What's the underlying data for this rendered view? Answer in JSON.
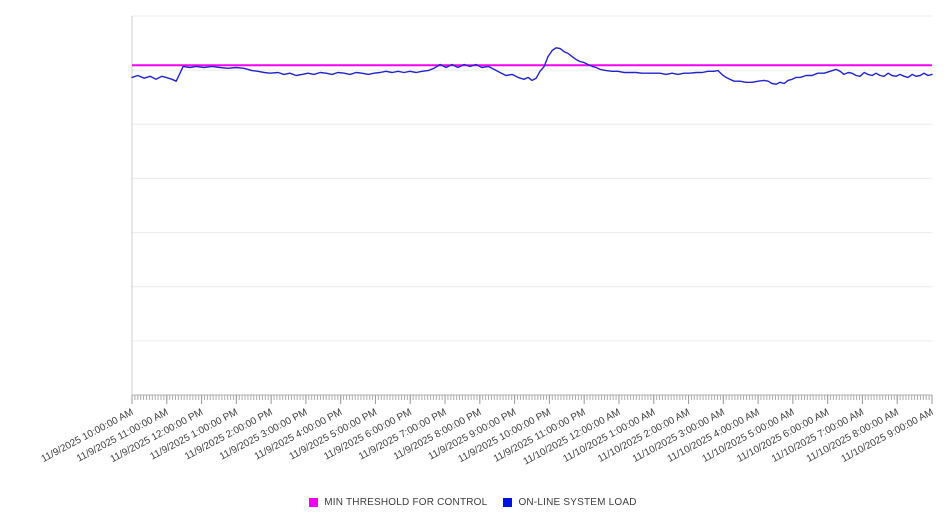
{
  "legend": {
    "items": [
      {
        "label": "MIN THRESHOLD FOR CONTROL",
        "color": "#f400f4"
      },
      {
        "label": "ON-LINE SYSTEM LOAD",
        "color": "#0012e1"
      }
    ]
  },
  "chart_data": {
    "type": "line",
    "title": "",
    "xlabel": "",
    "ylabel": "",
    "ylim": [
      0,
      100
    ],
    "grid": true,
    "grid_divisions": 7,
    "legend_position": "bottom-center",
    "x_axis": {
      "minor_ticks_per_hour": 12,
      "labels": [
        "11/9/2025 10:00:00 AM",
        "11/9/2025 11:00:00 AM",
        "11/9/2025 12:00:00 PM",
        "11/9/2025 1:00:00 PM",
        "11/9/2025 2:00:00 PM",
        "11/9/2025 3:00:00 PM",
        "11/9/2025 4:00:00 PM",
        "11/9/2025 5:00:00 PM",
        "11/9/2025 6:00:00 PM",
        "11/9/2025 7:00:00 PM",
        "11/9/2025 8:00:00 PM",
        "11/9/2025 9:00:00 PM",
        "11/9/2025 10:00:00 PM",
        "11/9/2025 11:00:00 PM",
        "11/10/2025 12:00:00 AM",
        "11/10/2025 1:00:00 AM",
        "11/10/2025 2:00:00 AM",
        "11/10/2025 3:00:00 AM",
        "11/10/2025 4:00:00 AM",
        "11/10/2025 5:00:00 AM",
        "11/10/2025 6:00:00 AM",
        "11/10/2025 7:00:00 AM",
        "11/10/2025 8:00:00 AM",
        "11/10/2025 9:00:00 AM"
      ]
    },
    "series": [
      {
        "name": "MIN THRESHOLD FOR CONTROL",
        "color": "#f400f4",
        "style": "horizontal-threshold-line",
        "value": 87
      },
      {
        "name": "ON-LINE SYSTEM LOAD",
        "color": "#2323cb",
        "style": "line",
        "x_unit": "hours since 11/9/2025 10:00:00 AM",
        "y_unit": "relative load (y axis unlabeled, 0-100 scale)",
        "points": [
          [
            0.0,
            83.8
          ],
          [
            0.17,
            84.3
          ],
          [
            0.35,
            83.6
          ],
          [
            0.52,
            84.1
          ],
          [
            0.69,
            83.3
          ],
          [
            0.86,
            84.1
          ],
          [
            0.98,
            83.8
          ],
          [
            1.15,
            83.3
          ],
          [
            1.27,
            82.8
          ],
          [
            1.38,
            84.9
          ],
          [
            1.47,
            86.7
          ],
          [
            1.67,
            86.4
          ],
          [
            1.84,
            86.7
          ],
          [
            2.07,
            86.4
          ],
          [
            2.3,
            86.7
          ],
          [
            2.53,
            86.4
          ],
          [
            2.76,
            86.2
          ],
          [
            2.99,
            86.4
          ],
          [
            3.22,
            86.2
          ],
          [
            3.45,
            85.6
          ],
          [
            3.62,
            85.4
          ],
          [
            3.8,
            85.1
          ],
          [
            3.97,
            84.9
          ],
          [
            4.2,
            85.1
          ],
          [
            4.37,
            84.6
          ],
          [
            4.54,
            84.9
          ],
          [
            4.72,
            84.3
          ],
          [
            4.89,
            84.6
          ],
          [
            5.06,
            84.9
          ],
          [
            5.23,
            84.6
          ],
          [
            5.41,
            85.1
          ],
          [
            5.58,
            84.9
          ],
          [
            5.75,
            84.6
          ],
          [
            5.92,
            85.1
          ],
          [
            6.1,
            84.9
          ],
          [
            6.27,
            84.6
          ],
          [
            6.44,
            85.1
          ],
          [
            6.61,
            84.9
          ],
          [
            6.79,
            84.6
          ],
          [
            6.96,
            84.9
          ],
          [
            7.13,
            85.1
          ],
          [
            7.3,
            85.4
          ],
          [
            7.48,
            85.1
          ],
          [
            7.65,
            85.4
          ],
          [
            7.82,
            85.1
          ],
          [
            7.99,
            85.4
          ],
          [
            8.17,
            85.1
          ],
          [
            8.34,
            85.4
          ],
          [
            8.51,
            85.6
          ],
          [
            8.68,
            86.2
          ],
          [
            8.86,
            87.2
          ],
          [
            9.03,
            86.4
          ],
          [
            9.2,
            87.2
          ],
          [
            9.37,
            86.4
          ],
          [
            9.55,
            87.2
          ],
          [
            9.72,
            86.7
          ],
          [
            9.89,
            87.2
          ],
          [
            10.06,
            86.4
          ],
          [
            10.24,
            86.7
          ],
          [
            10.41,
            85.9
          ],
          [
            10.58,
            85.1
          ],
          [
            10.75,
            84.3
          ],
          [
            10.93,
            84.6
          ],
          [
            11.1,
            83.8
          ],
          [
            11.27,
            83.3
          ],
          [
            11.39,
            83.8
          ],
          [
            11.5,
            83.0
          ],
          [
            11.62,
            83.6
          ],
          [
            11.73,
            85.4
          ],
          [
            11.85,
            86.7
          ],
          [
            11.96,
            89.3
          ],
          [
            12.08,
            90.9
          ],
          [
            12.19,
            91.6
          ],
          [
            12.31,
            91.4
          ],
          [
            12.42,
            90.6
          ],
          [
            12.54,
            90.1
          ],
          [
            12.65,
            89.3
          ],
          [
            12.77,
            88.5
          ],
          [
            12.88,
            88.0
          ],
          [
            13.0,
            87.7
          ],
          [
            13.11,
            87.2
          ],
          [
            13.23,
            86.7
          ],
          [
            13.34,
            86.4
          ],
          [
            13.46,
            85.9
          ],
          [
            13.63,
            85.6
          ],
          [
            13.8,
            85.4
          ],
          [
            13.97,
            85.4
          ],
          [
            14.15,
            85.1
          ],
          [
            14.32,
            85.1
          ],
          [
            14.49,
            85.1
          ],
          [
            14.66,
            84.9
          ],
          [
            14.84,
            84.9
          ],
          [
            15.01,
            84.9
          ],
          [
            15.18,
            84.9
          ],
          [
            15.35,
            84.6
          ],
          [
            15.53,
            84.9
          ],
          [
            15.7,
            84.6
          ],
          [
            15.87,
            84.9
          ],
          [
            16.04,
            84.9
          ],
          [
            16.22,
            85.1
          ],
          [
            16.39,
            85.1
          ],
          [
            16.56,
            85.4
          ],
          [
            16.73,
            85.4
          ],
          [
            16.85,
            85.6
          ],
          [
            16.96,
            84.6
          ],
          [
            17.08,
            83.8
          ],
          [
            17.19,
            83.3
          ],
          [
            17.31,
            82.8
          ],
          [
            17.48,
            82.8
          ],
          [
            17.65,
            82.5
          ],
          [
            17.83,
            82.5
          ],
          [
            18.0,
            82.8
          ],
          [
            18.17,
            83.0
          ],
          [
            18.29,
            82.8
          ],
          [
            18.4,
            82.2
          ],
          [
            18.52,
            82.0
          ],
          [
            18.63,
            82.5
          ],
          [
            18.75,
            82.2
          ],
          [
            18.86,
            83.0
          ],
          [
            18.98,
            83.3
          ],
          [
            19.09,
            83.8
          ],
          [
            19.21,
            83.8
          ],
          [
            19.38,
            84.3
          ],
          [
            19.55,
            84.3
          ],
          [
            19.72,
            84.9
          ],
          [
            19.9,
            84.9
          ],
          [
            20.07,
            85.4
          ],
          [
            20.24,
            85.9
          ],
          [
            20.36,
            85.4
          ],
          [
            20.47,
            84.6
          ],
          [
            20.59,
            85.1
          ],
          [
            20.7,
            84.9
          ],
          [
            20.82,
            84.3
          ],
          [
            20.93,
            84.1
          ],
          [
            21.05,
            85.1
          ],
          [
            21.16,
            84.6
          ],
          [
            21.28,
            84.3
          ],
          [
            21.39,
            84.9
          ],
          [
            21.51,
            84.3
          ],
          [
            21.62,
            84.1
          ],
          [
            21.74,
            84.9
          ],
          [
            21.85,
            84.3
          ],
          [
            21.97,
            84.1
          ],
          [
            22.08,
            84.6
          ],
          [
            22.2,
            84.1
          ],
          [
            22.31,
            83.8
          ],
          [
            22.43,
            84.6
          ],
          [
            22.54,
            84.1
          ],
          [
            22.66,
            84.3
          ],
          [
            22.77,
            84.9
          ],
          [
            22.89,
            84.3
          ],
          [
            23.0,
            84.6
          ]
        ]
      }
    ]
  }
}
